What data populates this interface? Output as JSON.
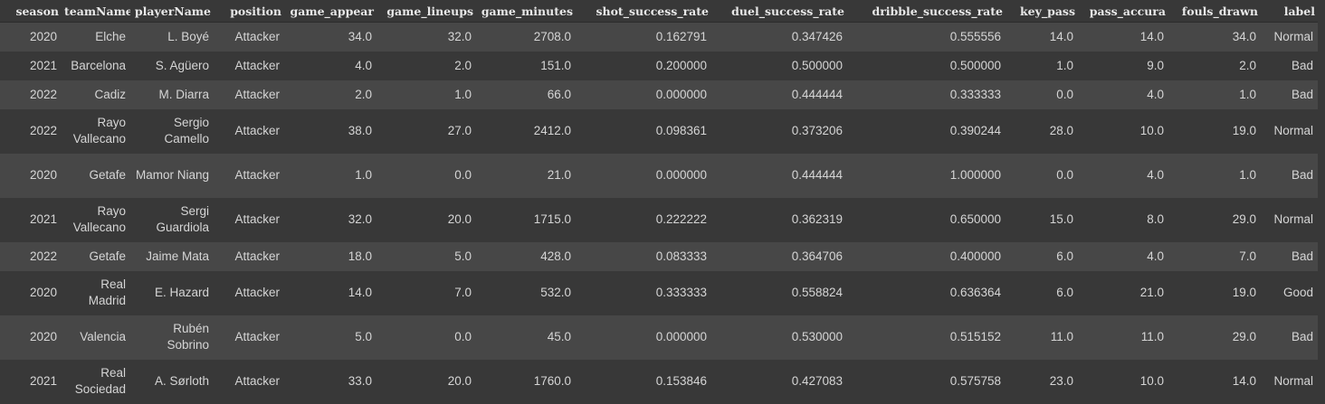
{
  "columns": [
    "season",
    "teamName",
    "playerName",
    "position",
    "game_appear",
    "game_lineups",
    "game_minutes",
    "shot_success_rate",
    "duel_success_rate",
    "dribble_success_rate",
    "key_pass",
    "pass_accura",
    "fouls_drawn",
    "label"
  ],
  "rows": [
    {
      "season": "2020",
      "teamName": "Elche",
      "playerName": "L. Boyé",
      "position": "Attacker",
      "game_appear": "34.0",
      "game_lineups": "32.0",
      "game_minutes": "2708.0",
      "shot_success_rate": "0.162791",
      "duel_success_rate": "0.347426",
      "dribble_success_rate": "0.555556",
      "key_pass": "14.0",
      "pass_accura": "14.0",
      "fouls_drawn": "34.0",
      "label": "Normal"
    },
    {
      "season": "2021",
      "teamName": "Barcelona",
      "playerName": "S. Agüero",
      "position": "Attacker",
      "game_appear": "4.0",
      "game_lineups": "2.0",
      "game_minutes": "151.0",
      "shot_success_rate": "0.200000",
      "duel_success_rate": "0.500000",
      "dribble_success_rate": "0.500000",
      "key_pass": "1.0",
      "pass_accura": "9.0",
      "fouls_drawn": "2.0",
      "label": "Bad"
    },
    {
      "season": "2022",
      "teamName": "Cadiz",
      "playerName": "M. Diarra",
      "position": "Attacker",
      "game_appear": "2.0",
      "game_lineups": "1.0",
      "game_minutes": "66.0",
      "shot_success_rate": "0.000000",
      "duel_success_rate": "0.444444",
      "dribble_success_rate": "0.333333",
      "key_pass": "0.0",
      "pass_accura": "4.0",
      "fouls_drawn": "1.0",
      "label": "Bad"
    },
    {
      "season": "2022",
      "teamName": "Rayo Vallecano",
      "playerName": "Sergio Camello",
      "position": "Attacker",
      "game_appear": "38.0",
      "game_lineups": "27.0",
      "game_minutes": "2412.0",
      "shot_success_rate": "0.098361",
      "duel_success_rate": "0.373206",
      "dribble_success_rate": "0.390244",
      "key_pass": "28.0",
      "pass_accura": "10.0",
      "fouls_drawn": "19.0",
      "label": "Normal"
    },
    {
      "season": "2020",
      "teamName": "Getafe",
      "playerName": "Mamor Niang",
      "position": "Attacker",
      "game_appear": "1.0",
      "game_lineups": "0.0",
      "game_minutes": "21.0",
      "shot_success_rate": "0.000000",
      "duel_success_rate": "0.444444",
      "dribble_success_rate": "1.000000",
      "key_pass": "0.0",
      "pass_accura": "4.0",
      "fouls_drawn": "1.0",
      "label": "Bad"
    },
    {
      "season": "2021",
      "teamName": "Rayo Vallecano",
      "playerName": "Sergi Guardiola",
      "position": "Attacker",
      "game_appear": "32.0",
      "game_lineups": "20.0",
      "game_minutes": "1715.0",
      "shot_success_rate": "0.222222",
      "duel_success_rate": "0.362319",
      "dribble_success_rate": "0.650000",
      "key_pass": "15.0",
      "pass_accura": "8.0",
      "fouls_drawn": "29.0",
      "label": "Normal"
    },
    {
      "season": "2022",
      "teamName": "Getafe",
      "playerName": "Jaime Mata",
      "position": "Attacker",
      "game_appear": "18.0",
      "game_lineups": "5.0",
      "game_minutes": "428.0",
      "shot_success_rate": "0.083333",
      "duel_success_rate": "0.364706",
      "dribble_success_rate": "0.400000",
      "key_pass": "6.0",
      "pass_accura": "4.0",
      "fouls_drawn": "7.0",
      "label": "Bad"
    },
    {
      "season": "2020",
      "teamName": "Real Madrid",
      "playerName": "E. Hazard",
      "position": "Attacker",
      "game_appear": "14.0",
      "game_lineups": "7.0",
      "game_minutes": "532.0",
      "shot_success_rate": "0.333333",
      "duel_success_rate": "0.558824",
      "dribble_success_rate": "0.636364",
      "key_pass": "6.0",
      "pass_accura": "21.0",
      "fouls_drawn": "19.0",
      "label": "Good"
    },
    {
      "season": "2020",
      "teamName": "Valencia",
      "playerName": "Rubén Sobrino",
      "position": "Attacker",
      "game_appear": "5.0",
      "game_lineups": "0.0",
      "game_minutes": "45.0",
      "shot_success_rate": "0.000000",
      "duel_success_rate": "0.530000",
      "dribble_success_rate": "0.515152",
      "key_pass": "11.0",
      "pass_accura": "11.0",
      "fouls_drawn": "29.0",
      "label": "Bad"
    },
    {
      "season": "2021",
      "teamName": "Real Sociedad",
      "playerName": "A. Sørloth",
      "position": "Attacker",
      "game_appear": "33.0",
      "game_lineups": "20.0",
      "game_minutes": "1760.0",
      "shot_success_rate": "0.153846",
      "duel_success_rate": "0.427083",
      "dribble_success_rate": "0.575758",
      "key_pass": "23.0",
      "pass_accura": "10.0",
      "fouls_drawn": "14.0",
      "label": "Normal"
    }
  ]
}
